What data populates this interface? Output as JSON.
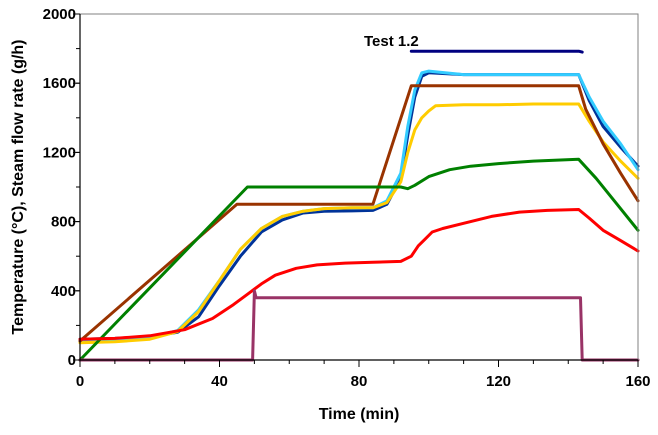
{
  "chart_data": {
    "type": "line",
    "title": "",
    "xlabel": "Time (min)",
    "ylabel": "Temperature (°C), Steam flow rate (g/h)",
    "xlim": [
      0,
      160
    ],
    "ylim": [
      0,
      2000
    ],
    "x_ticks": [
      0,
      40,
      80,
      120,
      160
    ],
    "y_ticks": [
      0,
      400,
      800,
      1200,
      1600,
      2000
    ],
    "x_tick_labels": [
      "0",
      "40",
      "80",
      "120",
      "160"
    ],
    "y_tick_labels": [
      "0",
      "400",
      "800",
      "1200",
      "1600",
      "2000"
    ],
    "grid": false,
    "legend": "none",
    "annotation": "Test 1.2",
    "series": [
      {
        "color": "#003399",
        "x": [
          0,
          10,
          20,
          28,
          34,
          40,
          46,
          52,
          58,
          64,
          70,
          78,
          84,
          88,
          92,
          94,
          96,
          98,
          100,
          110,
          120,
          130,
          143,
          146,
          150,
          155,
          160
        ],
        "y": [
          120,
          125,
          135,
          160,
          250,
          430,
          600,
          740,
          810,
          850,
          860,
          862,
          865,
          900,
          1050,
          1300,
          1520,
          1640,
          1660,
          1650,
          1650,
          1650,
          1650,
          1500,
          1350,
          1230,
          1120
        ]
      },
      {
        "color": "#33CCFF",
        "x": [
          0,
          10,
          20,
          28,
          34,
          40,
          46,
          52,
          58,
          64,
          70,
          78,
          84,
          88,
          92,
          94,
          96,
          98,
          100,
          110,
          120,
          130,
          143,
          146,
          150,
          155,
          160
        ],
        "y": [
          110,
          115,
          130,
          170,
          290,
          460,
          640,
          760,
          830,
          860,
          875,
          880,
          880,
          920,
          1080,
          1350,
          1560,
          1660,
          1670,
          1650,
          1650,
          1650,
          1650,
          1520,
          1380,
          1250,
          1100
        ]
      },
      {
        "color": "#FFCC00",
        "x": [
          0,
          10,
          20,
          28,
          34,
          40,
          46,
          52,
          58,
          64,
          70,
          78,
          84,
          88,
          92,
          94,
          96,
          98,
          100,
          102,
          110,
          120,
          130,
          143,
          146,
          150,
          155,
          160
        ],
        "y": [
          100,
          105,
          120,
          165,
          280,
          460,
          640,
          760,
          830,
          860,
          875,
          880,
          880,
          910,
          1030,
          1200,
          1330,
          1400,
          1440,
          1470,
          1475,
          1475,
          1480,
          1480,
          1380,
          1260,
          1150,
          1050
        ]
      },
      {
        "color": "#993300",
        "x": [
          0,
          45,
          84,
          95,
          100,
          143,
          145,
          150,
          155,
          160
        ],
        "y": [
          110,
          900,
          900,
          1585,
          1585,
          1585,
          1450,
          1250,
          1080,
          920
        ]
      },
      {
        "color": "#000080",
        "x": [
          95,
          143,
          144
        ],
        "y": [
          1785,
          1785,
          1780
        ]
      },
      {
        "color": "#008000",
        "x": [
          0,
          48,
          92,
          94,
          96,
          100,
          106,
          112,
          120,
          130,
          143,
          148,
          154,
          160
        ],
        "y": [
          0,
          1000,
          1000,
          990,
          1010,
          1060,
          1100,
          1120,
          1135,
          1150,
          1160,
          1050,
          900,
          750
        ]
      },
      {
        "color": "#FF0000",
        "x": [
          0,
          10,
          20,
          30,
          38,
          44,
          48,
          52,
          56,
          62,
          68,
          76,
          84,
          92,
          95,
          97,
          99,
          101,
          104,
          110,
          118,
          126,
          134,
          143,
          146,
          150,
          155,
          160
        ],
        "y": [
          120,
          125,
          140,
          175,
          240,
          320,
          380,
          440,
          490,
          530,
          550,
          560,
          565,
          570,
          600,
          660,
          700,
          740,
          760,
          790,
          830,
          855,
          865,
          870,
          820,
          750,
          690,
          630
        ]
      },
      {
        "color": "#993366",
        "x": [
          0,
          49.5,
          50,
          50.5,
          143,
          143.5,
          144,
          160
        ],
        "y": [
          0,
          0,
          400,
          360,
          360,
          360,
          0,
          0
        ]
      }
    ]
  }
}
